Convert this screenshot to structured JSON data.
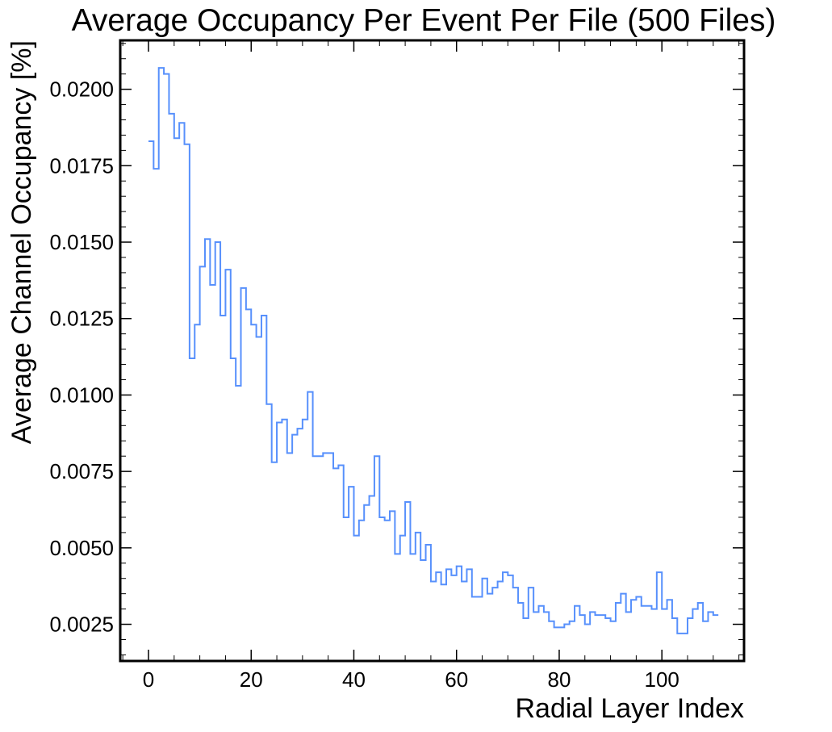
{
  "chart_data": {
    "type": "line",
    "style": "step",
    "title": "Average Occupancy Per Event Per File (500 Files)",
    "xlabel": "Radial Layer Index",
    "ylabel": "Average Channel Occupancy [%]",
    "xlim": [
      -5.5,
      116
    ],
    "ylim": [
      0.0013,
      0.0216
    ],
    "x_ticks": [
      0,
      20,
      40,
      60,
      80,
      100
    ],
    "y_ticks": [
      0.0025,
      0.005,
      0.0075,
      0.01,
      0.0125,
      0.015,
      0.0175,
      0.02
    ],
    "x_tick_labels": [
      "0",
      "20",
      "40",
      "60",
      "80",
      "100"
    ],
    "y_tick_labels": [
      "0.0025",
      "0.0050",
      "0.0075",
      "0.0100",
      "0.0125",
      "0.0150",
      "0.0175",
      "0.0200"
    ],
    "grid": false,
    "legend": "none",
    "color": "#5790fc",
    "series": [
      {
        "x": [
          0,
          1,
          2,
          3,
          4,
          5,
          6,
          7,
          8,
          9,
          10,
          11,
          12,
          13,
          14,
          15,
          16,
          17,
          18,
          19,
          20,
          21,
          22,
          23,
          24,
          25,
          26,
          27,
          28,
          29,
          30,
          31,
          32,
          33,
          34,
          35,
          36,
          37,
          38,
          39,
          40,
          41,
          42,
          43,
          44,
          45,
          46,
          47,
          48,
          49,
          50,
          51,
          52,
          53,
          54,
          55,
          56,
          57,
          58,
          59,
          60,
          61,
          62,
          63,
          64,
          65,
          66,
          67,
          68,
          69,
          70,
          71,
          72,
          73,
          74,
          75,
          76,
          77,
          78,
          79,
          80,
          81,
          82,
          83,
          84,
          85,
          86,
          87,
          88,
          89,
          90,
          91,
          92,
          93,
          94,
          95,
          96,
          97,
          98,
          99,
          100,
          101,
          102,
          103,
          104,
          105,
          106,
          107,
          108,
          109,
          110
        ],
        "values": [
          0.0183,
          0.0174,
          0.0207,
          0.0205,
          0.0192,
          0.0184,
          0.0189,
          0.0182,
          0.0112,
          0.0123,
          0.0142,
          0.0151,
          0.0136,
          0.015,
          0.0126,
          0.0141,
          0.0112,
          0.0103,
          0.0135,
          0.0128,
          0.0123,
          0.0119,
          0.0126,
          0.0097,
          0.0078,
          0.0091,
          0.0092,
          0.0081,
          0.0087,
          0.0089,
          0.0092,
          0.0101,
          0.008,
          0.008,
          0.0081,
          0.0081,
          0.0076,
          0.0077,
          0.006,
          0.007,
          0.0054,
          0.0059,
          0.0064,
          0.0067,
          0.008,
          0.006,
          0.0059,
          0.0062,
          0.0048,
          0.0054,
          0.0065,
          0.0048,
          0.0055,
          0.0046,
          0.0051,
          0.0039,
          0.0042,
          0.0038,
          0.0043,
          0.0041,
          0.0044,
          0.0039,
          0.0043,
          0.0034,
          0.0034,
          0.004,
          0.0035,
          0.0037,
          0.0039,
          0.0042,
          0.0041,
          0.0037,
          0.0032,
          0.0027,
          0.0037,
          0.0029,
          0.0031,
          0.0029,
          0.0026,
          0.0024,
          0.0024,
          0.0025,
          0.0026,
          0.0031,
          0.0028,
          0.0025,
          0.0029,
          0.0028,
          0.0028,
          0.0027,
          0.0026,
          0.0032,
          0.0035,
          0.0029,
          0.0033,
          0.0034,
          0.0031,
          0.0031,
          0.003,
          0.0042,
          0.003,
          0.0033,
          0.0027,
          0.0022,
          0.0022,
          0.0027,
          0.003,
          0.0032,
          0.0026,
          0.0029,
          0.0028
        ]
      }
    ]
  }
}
